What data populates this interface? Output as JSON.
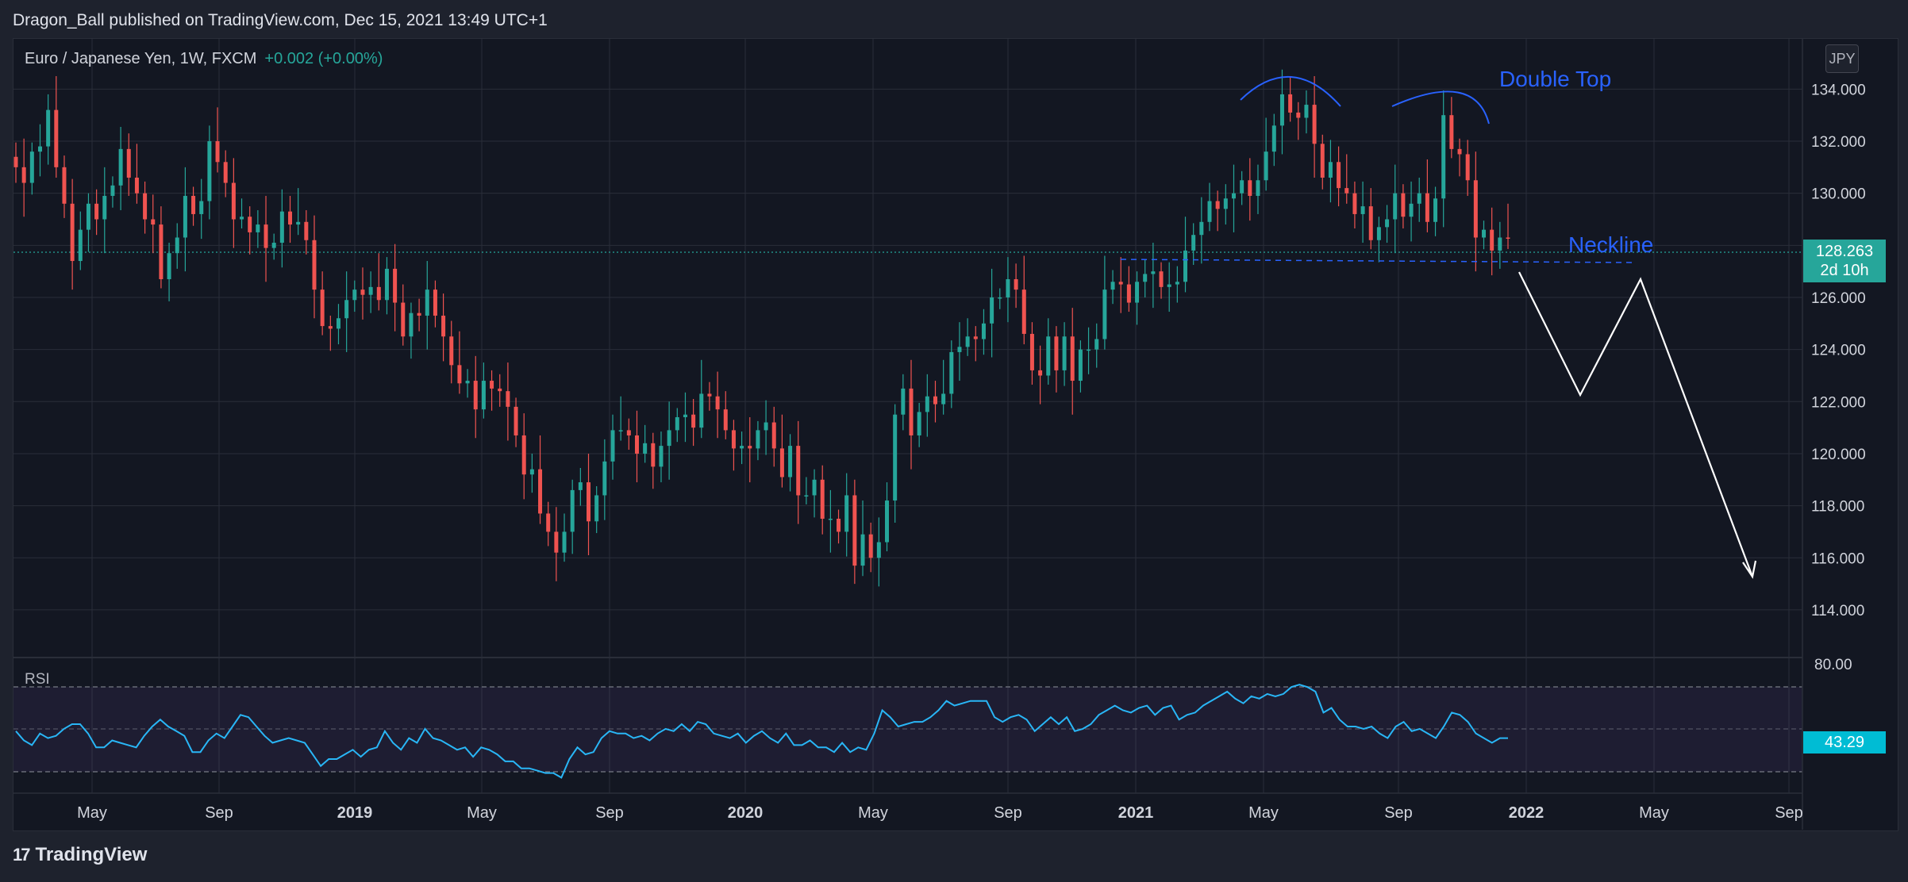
{
  "header": {
    "published": "Dragon_Ball published on TradingView.com, Dec 15, 2021 13:49 UTC+1"
  },
  "legend": {
    "symbol": "Euro / Japanese Yen, 1W, FXCM",
    "change": "+0.002 (+0.00%)"
  },
  "currency_button": "JPY",
  "price_label": {
    "price": "128.263",
    "countdown": "2d 10h"
  },
  "rsi": {
    "label": "RSI",
    "value_label": "43.29"
  },
  "annotations": {
    "double_top": "Double Top",
    "neckline": "Neckline"
  },
  "footer": {
    "brand": "TradingView",
    "logo": "17"
  },
  "colors": {
    "up": "#26a69a",
    "down": "#ef5350",
    "rsi_line": "#29b6f6",
    "annotation": "#2962ff",
    "background": "#131722"
  },
  "chart_data": [
    {
      "type": "candlestick",
      "title": "Euro / Japanese Yen, 1W, FXCM",
      "x_ticks": [
        "May",
        "Sep",
        "2019",
        "May",
        "Sep",
        "2020",
        "May",
        "Sep",
        "2021",
        "May",
        "Sep",
        "2022",
        "May",
        "Sep"
      ],
      "y_ticks": [
        "114.000",
        "116.000",
        "118.000",
        "120.000",
        "122.000",
        "124.000",
        "126.000",
        "128.000",
        "130.000",
        "132.000",
        "134.000"
      ],
      "ylim": [
        112.2,
        135.9
      ],
      "series": [
        {
          "period": "2018-03 to 2021-12 (weekly)",
          "close": [
            131.0,
            130.4,
            131.6,
            131.8,
            133.2,
            131.0,
            129.6,
            127.4,
            128.6,
            129.6,
            129.0,
            129.9,
            130.3,
            131.7,
            130.6,
            130.0,
            129.0,
            128.8,
            126.7,
            127.7,
            128.3,
            129.9,
            129.2,
            129.7,
            132.0,
            131.2,
            130.4,
            129.0,
            129.1,
            128.5,
            128.8,
            127.9,
            128.1,
            129.3,
            128.8,
            128.9,
            128.2,
            126.3,
            124.9,
            124.8,
            125.2,
            125.9,
            126.3,
            126.1,
            126.4,
            125.9,
            127.1,
            125.8,
            124.5,
            125.4,
            125.3,
            126.3,
            125.3,
            124.5,
            123.4,
            122.7,
            122.8,
            121.7,
            122.8,
            122.5,
            122.4,
            121.8,
            120.7,
            119.2,
            119.4,
            117.7,
            117.0,
            116.2,
            117.0,
            118.6,
            118.9,
            117.4,
            118.4,
            119.7,
            120.9,
            120.9,
            120.7,
            120.0,
            120.4,
            119.5,
            120.3,
            120.9,
            121.4,
            121.5,
            121.0,
            122.3,
            122.2,
            121.7,
            120.9,
            120.2,
            120.3,
            120.2,
            120.9,
            121.2,
            120.2,
            119.1,
            120.3,
            118.4,
            118.4,
            119.0,
            117.5,
            117.5,
            117.0,
            118.4,
            115.7,
            116.9,
            116.0,
            116.6,
            118.2,
            121.5,
            122.5,
            120.7,
            121.6,
            122.2,
            121.9,
            122.3,
            123.9,
            124.1,
            124.5,
            124.4,
            125.0,
            126.0,
            126.0,
            126.7,
            126.3,
            124.6,
            123.2,
            123.0,
            124.5,
            123.2,
            124.5,
            122.8,
            124.0,
            124.0,
            124.4,
            126.3,
            126.6,
            126.5,
            125.8,
            126.6,
            126.9,
            127.0,
            126.4,
            126.5,
            126.6,
            127.8,
            128.4,
            128.9,
            129.7,
            129.4,
            129.8,
            130.0,
            130.5,
            129.9,
            130.5,
            131.6,
            132.6,
            133.8,
            133.1,
            132.9,
            133.4,
            131.9,
            130.6,
            131.2,
            130.2,
            130.0,
            129.2,
            129.5,
            128.2,
            128.7,
            129.0,
            130.0,
            129.1,
            129.6,
            130.0,
            128.9,
            129.8,
            133.0,
            131.7,
            131.5,
            130.5,
            128.3,
            128.6,
            127.8,
            128.3,
            128.26
          ],
          "summary": {
            "high": 134.1,
            "high_period": "2021-05 / 2021-06",
            "low": 114.4,
            "low_period": "2020-05",
            "second_top": 133.5,
            "second_top_period": "2021-10",
            "last_close": 128.263
          }
        }
      ]
    },
    {
      "type": "line",
      "title": "RSI",
      "y_ticks": [
        "80.00"
      ],
      "ylim": [
        25,
        82
      ],
      "bands": [
        70,
        50,
        30
      ],
      "last_value": 43.29,
      "series": [
        {
          "name": "RSI",
          "values": [
            51,
            47,
            45,
            50,
            48,
            49,
            52,
            54,
            54,
            50,
            44,
            44,
            47,
            46,
            45,
            44,
            49,
            53,
            56,
            53,
            51,
            49,
            42,
            42,
            47,
            50,
            48,
            53,
            58,
            57,
            53,
            49,
            46,
            47,
            48,
            47,
            46,
            41,
            36,
            39,
            39,
            41,
            43,
            40,
            43,
            44,
            51,
            46,
            43,
            48,
            46,
            52,
            48,
            47,
            45,
            43,
            44,
            40,
            44,
            43,
            41,
            38,
            38,
            35,
            35,
            34,
            33,
            33,
            31,
            39,
            44,
            41,
            42,
            48,
            51,
            50,
            50,
            48,
            49,
            47,
            50,
            52,
            51,
            54,
            51,
            55,
            54,
            50,
            49,
            48,
            50,
            46,
            49,
            51,
            48,
            46,
            50,
            45,
            45,
            47,
            44,
            44,
            42,
            46,
            42,
            44,
            43,
            50,
            60,
            57,
            53,
            54,
            55,
            55,
            57,
            60,
            64,
            62,
            63,
            64,
            64,
            64,
            57,
            55,
            57,
            58,
            56,
            51,
            54,
            57,
            54,
            57,
            51,
            52,
            54,
            58,
            60,
            62,
            60,
            59,
            61,
            62,
            58,
            61,
            62,
            56,
            58,
            59,
            62,
            64,
            66,
            68,
            65,
            63,
            66,
            65,
            67,
            66,
            67,
            70,
            71,
            70,
            68,
            59,
            61,
            56,
            53,
            53,
            52,
            53,
            50,
            48,
            53,
            55,
            51,
            52,
            50,
            48,
            53,
            59,
            58,
            55,
            50,
            48,
            46,
            48,
            48
          ]
        }
      ]
    }
  ]
}
